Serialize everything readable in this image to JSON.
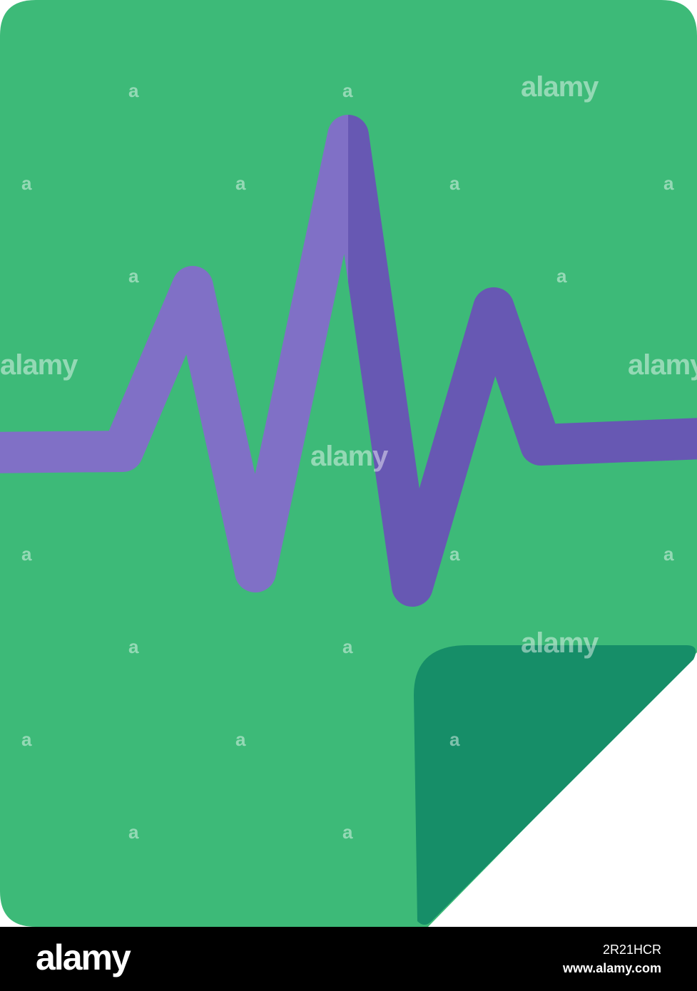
{
  "image": {
    "subject": "document-pulse-icon",
    "colors": {
      "page": "#3dba78",
      "fold": "#168e68",
      "pulse_light": "#8070c6",
      "pulse_dark": "#6758b3",
      "footer": "#000000"
    }
  },
  "watermark": {
    "text": "alamy",
    "small": "a"
  },
  "footer": {
    "logo": "alamy",
    "image_id": "2R21HCR",
    "url": "www.alamy.com"
  }
}
